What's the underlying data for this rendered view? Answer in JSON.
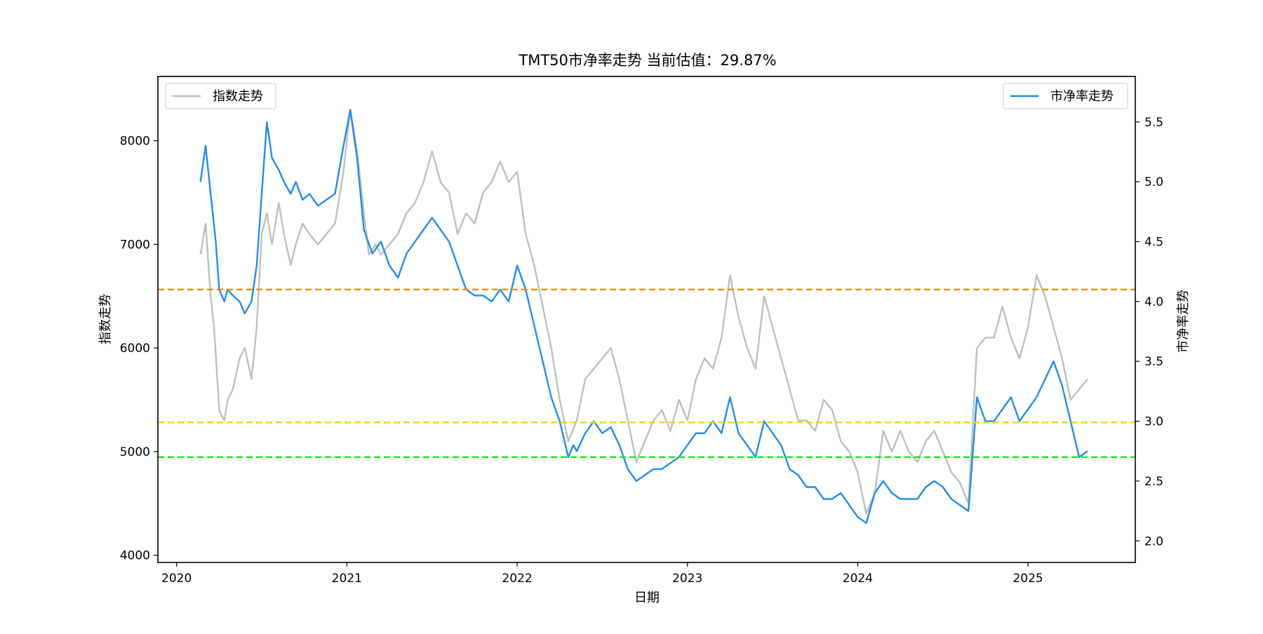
{
  "chart_data": {
    "type": "line",
    "title": "TMT50市净率走势 当前估值：29.87%",
    "xlabel": "日期",
    "ylabel_left": "指数走势",
    "ylabel_right": "市净率走势",
    "x_ticks": [
      "2020",
      "2021",
      "2022",
      "2023",
      "2024",
      "2025"
    ],
    "x_range": [
      2019.89,
      2025.63
    ],
    "y_left_ticks": [
      4000,
      5000,
      6000,
      7000,
      8000
    ],
    "y_left_range": [
      3930,
      8620
    ],
    "y_right_ticks": [
      "2.0",
      "2.5",
      "3.0",
      "3.5",
      "4.0",
      "4.5",
      "5.0",
      "5.5"
    ],
    "y_right_range": [
      1.82,
      5.88
    ],
    "grid": false,
    "legend_left": {
      "placement": "top-left",
      "label": "指数走势"
    },
    "legend_right": {
      "placement": "top-right",
      "label": "市净率走势"
    },
    "colors": {
      "index": "#bfbfbf",
      "pb": "#1f8ef1",
      "line_high": "#e69500",
      "line_mid": "#f2d31c",
      "line_low": "#19e619"
    },
    "reference_lines": [
      {
        "value": 4.1,
        "axis": "right",
        "style": "dashed",
        "color": "#e69500"
      },
      {
        "value": 2.99,
        "axis": "right",
        "style": "dashed",
        "color": "#f2d31c"
      },
      {
        "value": 2.7,
        "axis": "right",
        "style": "dashed",
        "color": "#19e619"
      }
    ],
    "series": [
      {
        "name": "指数走势",
        "axis": "left",
        "x": [
          2020.14,
          2020.17,
          2020.2,
          2020.22,
          2020.25,
          2020.28,
          2020.3,
          2020.33,
          2020.37,
          2020.4,
          2020.44,
          2020.47,
          2020.5,
          2020.53,
          2020.56,
          2020.6,
          2020.63,
          2020.67,
          2020.7,
          2020.74,
          2020.78,
          2020.83,
          2020.88,
          2020.93,
          2020.98,
          2021.02,
          2021.06,
          2021.1,
          2021.13,
          2021.17,
          2021.2,
          2021.25,
          2021.3,
          2021.35,
          2021.4,
          2021.45,
          2021.5,
          2021.55,
          2021.6,
          2021.65,
          2021.7,
          2021.75,
          2021.8,
          2021.85,
          2021.9,
          2021.95,
          2022.0,
          2022.05,
          2022.1,
          2022.15,
          2022.2,
          2022.25,
          2022.3,
          2022.35,
          2022.4,
          2022.45,
          2022.5,
          2022.55,
          2022.6,
          2022.65,
          2022.7,
          2022.75,
          2022.8,
          2022.85,
          2022.9,
          2022.95,
          2023.0,
          2023.05,
          2023.1,
          2023.15,
          2023.2,
          2023.25,
          2023.3,
          2023.35,
          2023.4,
          2023.45,
          2023.5,
          2023.55,
          2023.6,
          2023.65,
          2023.7,
          2023.75,
          2023.8,
          2023.85,
          2023.9,
          2023.95,
          2024.0,
          2024.05,
          2024.1,
          2024.15,
          2024.2,
          2024.25,
          2024.3,
          2024.35,
          2024.4,
          2024.45,
          2024.5,
          2024.55,
          2024.6,
          2024.65,
          2024.7,
          2024.75,
          2024.8,
          2024.85,
          2024.9,
          2024.95,
          2025.0,
          2025.05,
          2025.1,
          2025.15,
          2025.2,
          2025.25,
          2025.3,
          2025.35
        ],
        "values": [
          6900,
          7200,
          6500,
          6200,
          5400,
          5300,
          5500,
          5600,
          5900,
          6000,
          5700,
          6200,
          7100,
          7300,
          7000,
          7400,
          7100,
          6800,
          7000,
          7200,
          7100,
          7000,
          7100,
          7200,
          7700,
          8300,
          7900,
          7300,
          6900,
          7000,
          6900,
          7000,
          7100,
          7300,
          7400,
          7600,
          7900,
          7600,
          7500,
          7100,
          7300,
          7200,
          7500,
          7600,
          7800,
          7600,
          7700,
          7100,
          6800,
          6400,
          6000,
          5500,
          5100,
          5300,
          5700,
          5800,
          5900,
          6000,
          5700,
          5300,
          4900,
          5100,
          5300,
          5400,
          5200,
          5500,
          5300,
          5700,
          5900,
          5800,
          6100,
          6700,
          6300,
          6000,
          5800,
          6500,
          6200,
          5900,
          5600,
          5300,
          5300,
          5200,
          5500,
          5400,
          5100,
          5000,
          4800,
          4400,
          4600,
          5200,
          5000,
          5200,
          5000,
          4900,
          5100,
          5200,
          5000,
          4800,
          4700,
          4500,
          6000,
          6100,
          6100,
          6400,
          6100,
          5900,
          6200,
          6700,
          6500,
          6200,
          5900,
          5500,
          5600,
          5700
        ]
      },
      {
        "name": "市净率走势",
        "axis": "right",
        "x": [
          2020.14,
          2020.17,
          2020.2,
          2020.23,
          2020.25,
          2020.28,
          2020.3,
          2020.33,
          2020.37,
          2020.4,
          2020.44,
          2020.47,
          2020.5,
          2020.53,
          2020.56,
          2020.6,
          2020.63,
          2020.67,
          2020.7,
          2020.74,
          2020.78,
          2020.83,
          2020.88,
          2020.93,
          2020.98,
          2021.02,
          2021.06,
          2021.1,
          2021.15,
          2021.2,
          2021.25,
          2021.3,
          2021.35,
          2021.4,
          2021.45,
          2021.5,
          2021.55,
          2021.6,
          2021.65,
          2021.7,
          2021.75,
          2021.8,
          2021.85,
          2021.9,
          2021.95,
          2022.0,
          2022.05,
          2022.1,
          2022.15,
          2022.2,
          2022.25,
          2022.3,
          2022.33,
          2022.35,
          2022.4,
          2022.45,
          2022.5,
          2022.55,
          2022.6,
          2022.65,
          2022.7,
          2022.75,
          2022.8,
          2022.85,
          2022.9,
          2022.95,
          2023.0,
          2023.05,
          2023.1,
          2023.15,
          2023.2,
          2023.25,
          2023.3,
          2023.35,
          2023.4,
          2023.45,
          2023.5,
          2023.55,
          2023.6,
          2023.65,
          2023.7,
          2023.75,
          2023.8,
          2023.85,
          2023.9,
          2023.95,
          2024.0,
          2024.05,
          2024.1,
          2024.15,
          2024.2,
          2024.25,
          2024.3,
          2024.35,
          2024.4,
          2024.45,
          2024.5,
          2024.55,
          2024.6,
          2024.65,
          2024.7,
          2024.75,
          2024.8,
          2024.85,
          2024.9,
          2024.95,
          2025.0,
          2025.05,
          2025.1,
          2025.15,
          2025.2,
          2025.25,
          2025.3,
          2025.35
        ],
        "values": [
          5.0,
          5.3,
          4.9,
          4.5,
          4.1,
          4.0,
          4.1,
          4.05,
          4.0,
          3.9,
          4.0,
          4.3,
          4.9,
          5.5,
          5.2,
          5.1,
          5.0,
          4.9,
          5.0,
          4.85,
          4.9,
          4.8,
          4.85,
          4.9,
          5.3,
          5.6,
          5.2,
          4.6,
          4.4,
          4.5,
          4.3,
          4.2,
          4.4,
          4.5,
          4.6,
          4.7,
          4.6,
          4.5,
          4.3,
          4.1,
          4.05,
          4.05,
          4.0,
          4.1,
          4.0,
          4.3,
          4.1,
          3.8,
          3.5,
          3.2,
          3.0,
          2.7,
          2.8,
          2.75,
          2.9,
          3.0,
          2.9,
          2.95,
          2.8,
          2.6,
          2.5,
          2.55,
          2.6,
          2.6,
          2.65,
          2.7,
          2.8,
          2.9,
          2.9,
          3.0,
          2.9,
          3.2,
          2.9,
          2.8,
          2.7,
          3.0,
          2.9,
          2.8,
          2.6,
          2.55,
          2.45,
          2.45,
          2.35,
          2.35,
          2.4,
          2.3,
          2.2,
          2.15,
          2.4,
          2.5,
          2.4,
          2.35,
          2.35,
          2.35,
          2.45,
          2.5,
          2.45,
          2.35,
          2.3,
          2.25,
          3.2,
          3.0,
          3.0,
          3.1,
          3.2,
          3.0,
          3.1,
          3.2,
          3.35,
          3.5,
          3.3,
          3.0,
          2.7,
          2.75
        ]
      }
    ]
  }
}
